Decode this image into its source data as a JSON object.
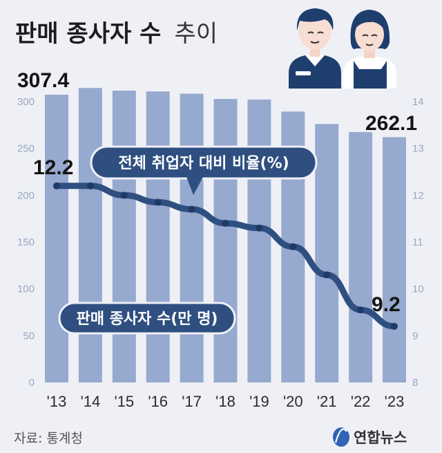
{
  "title": {
    "bold": "판매 종사자 수",
    "light": "추이"
  },
  "source": "자료: 통계청",
  "logo_text": "연합뉴스",
  "colors": {
    "bar": "#96a9cf",
    "line": "#2f4f80",
    "bg": "#eef0f6"
  },
  "chart_data": {
    "type": "bar",
    "categories": [
      "'13",
      "'14",
      "'15",
      "'16",
      "'17",
      "'18",
      "'19",
      "'20",
      "'21",
      "'22",
      "'23"
    ],
    "series": [
      {
        "name": "판매 종사자 수(만 명)",
        "axis": "left",
        "values": [
          307.4,
          314.6,
          311.8,
          310.9,
          308.5,
          302.9,
          302.3,
          289.4,
          276.2,
          267.5,
          262.1
        ]
      },
      {
        "name": "전체 취업자 대비 비율(%)",
        "axis": "right",
        "type": "line",
        "values": [
          12.2,
          12.2,
          12.0,
          11.85,
          11.7,
          11.4,
          11.3,
          10.9,
          10.3,
          9.55,
          9.2
        ]
      }
    ],
    "y_left": {
      "min": 0,
      "max": 300,
      "ticks": [
        0,
        50,
        100,
        150,
        200,
        250,
        300
      ]
    },
    "y_right": {
      "min": 8,
      "max": 14,
      "ticks": [
        8,
        9,
        10,
        11,
        12,
        13,
        14
      ]
    },
    "labels": {
      "first_bar": "307.4",
      "last_bar": "262.1",
      "first_point": "12.2",
      "last_point": "9.2"
    },
    "callouts": {
      "line": "전체 취업자 대비 비율(%)",
      "bars": "판매 종사자 수(만 명)"
    }
  }
}
